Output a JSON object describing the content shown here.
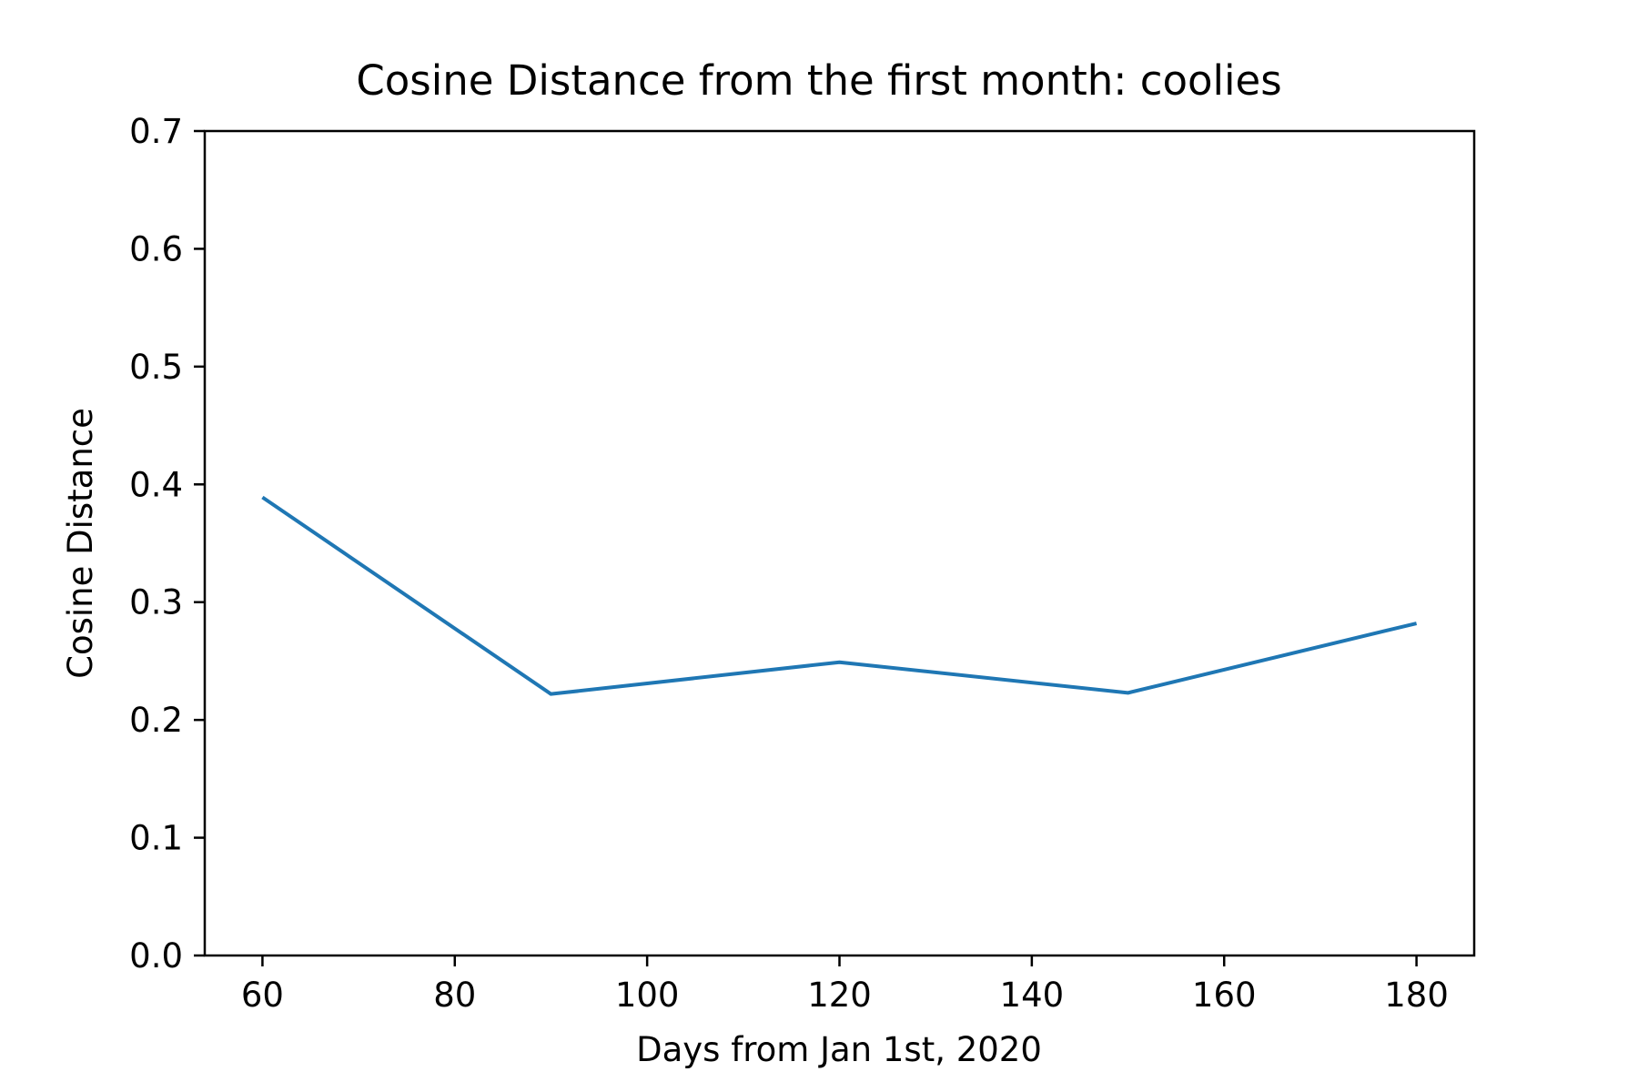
{
  "chart_data": {
    "type": "line",
    "title": "Cosine Distance from the first month: coolies",
    "xlabel": "Days from Jan 1st, 2020",
    "ylabel": "Cosine Distance",
    "xlim": [
      54,
      186
    ],
    "ylim": [
      0.0,
      0.7
    ],
    "xticks": [
      60,
      80,
      100,
      120,
      140,
      160,
      180
    ],
    "xtick_labels": [
      "60",
      "80",
      "100",
      "120",
      "140",
      "160",
      "180"
    ],
    "yticks": [
      0.0,
      0.1,
      0.2,
      0.3,
      0.4,
      0.5,
      0.6,
      0.7
    ],
    "ytick_labels": [
      "0.0",
      "0.1",
      "0.2",
      "0.3",
      "0.4",
      "0.5",
      "0.6",
      "0.7"
    ],
    "grid": false,
    "series": [
      {
        "name": "coolies",
        "color": "#1f77b4",
        "x": [
          60,
          90,
          120,
          150,
          180
        ],
        "y": [
          0.389,
          0.222,
          0.249,
          0.223,
          0.282
        ]
      }
    ]
  }
}
